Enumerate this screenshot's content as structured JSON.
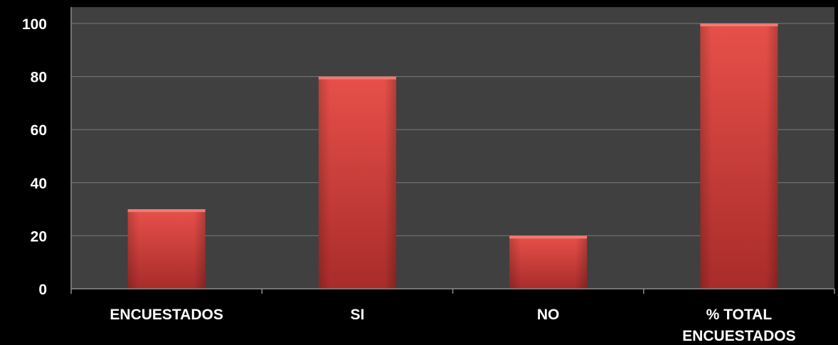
{
  "chart_data": {
    "type": "bar",
    "categories": [
      "ENCUESTADOS",
      "SI",
      "NO",
      "% TOTAL ENCUESTADOS"
    ],
    "category_labels": [
      [
        "ENCUESTADOS"
      ],
      [
        "SI"
      ],
      [
        "NO"
      ],
      [
        "% TOTAL",
        "ENCUESTADOS"
      ]
    ],
    "values": [
      30,
      80,
      20,
      100
    ],
    "ylim": [
      0,
      100
    ],
    "yticks": [
      0,
      20,
      40,
      60,
      80,
      100
    ],
    "ytick_labels": [
      "0",
      "20",
      "40",
      "60",
      "80",
      "100"
    ],
    "grid": true,
    "title": "",
    "xlabel": "",
    "ylabel": ""
  },
  "colors": {
    "page_background": "#000000",
    "plot_background": "#404040",
    "gridline": "#7a7a7a",
    "axis_line": "#8c8c8c",
    "bar_fill_top": "#e8504a",
    "bar_fill_bottom": "#a82c2a",
    "bar_cap": "#f07a72",
    "text": "#ffffff"
  }
}
